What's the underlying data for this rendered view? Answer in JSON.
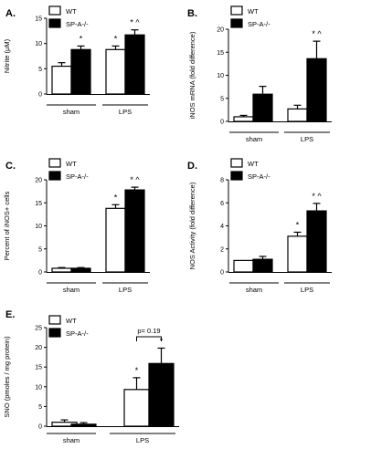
{
  "chart_data": [
    {
      "panel": "A.",
      "type": "bar",
      "ylabel": "Nitrite (µM)",
      "ylim": [
        0,
        15
      ],
      "yticks": [
        0,
        5,
        10,
        15
      ],
      "groups": [
        "sham",
        "LPS"
      ],
      "series": [
        {
          "name": "WT",
          "color": "#ffffff",
          "values": [
            5.5,
            8.8
          ],
          "errors": [
            0.7,
            0.7
          ]
        },
        {
          "name": "SP-A-/-",
          "color": "#000000",
          "values": [
            8.8,
            11.7
          ],
          "errors": [
            0.7,
            1.0
          ]
        }
      ],
      "annotations": [
        {
          "group": 0,
          "series": 1,
          "text": "*"
        },
        {
          "group": 1,
          "series": 0,
          "text": "*"
        },
        {
          "group": 1,
          "series": 1,
          "text": "* ^"
        }
      ]
    },
    {
      "panel": "B.",
      "type": "bar",
      "ylabel": "iNOS mRNA (fold difference)",
      "ylim": [
        0,
        20
      ],
      "yticks": [
        0,
        5,
        10,
        15,
        20
      ],
      "groups": [
        "sham",
        "LPS"
      ],
      "series": [
        {
          "name": "WT",
          "color": "#ffffff",
          "values": [
            1.0,
            2.7
          ],
          "errors": [
            0.3,
            0.8
          ]
        },
        {
          "name": "SP-A-/-",
          "color": "#000000",
          "values": [
            5.9,
            13.6
          ],
          "errors": [
            1.7,
            3.8
          ]
        }
      ],
      "annotations": [
        {
          "group": 1,
          "series": 1,
          "text": "* ^"
        }
      ]
    },
    {
      "panel": "C.",
      "type": "bar",
      "ylabel": "Percent of iNOS+ cells",
      "ylim": [
        0,
        20
      ],
      "yticks": [
        0,
        5,
        10,
        15,
        20
      ],
      "groups": [
        "sham",
        "LPS"
      ],
      "series": [
        {
          "name": "WT",
          "color": "#ffffff",
          "values": [
            0.8,
            13.8
          ],
          "errors": [
            0.15,
            0.8
          ]
        },
        {
          "name": "SP-A-/-",
          "color": "#000000",
          "values": [
            0.8,
            17.8
          ],
          "errors": [
            0.15,
            0.6
          ]
        }
      ],
      "annotations": [
        {
          "group": 1,
          "series": 0,
          "text": "*"
        },
        {
          "group": 1,
          "series": 1,
          "text": "* ^"
        }
      ]
    },
    {
      "panel": "D.",
      "type": "bar",
      "ylabel": "NOS Activity (fold difference)",
      "ylim": [
        0,
        8
      ],
      "yticks": [
        0,
        2,
        4,
        6,
        8
      ],
      "groups": [
        "sham",
        "LPS"
      ],
      "series": [
        {
          "name": "WT",
          "color": "#ffffff",
          "values": [
            1.0,
            3.1
          ],
          "errors": [
            0.0,
            0.35
          ]
        },
        {
          "name": "SP-A-/-",
          "color": "#000000",
          "values": [
            1.1,
            5.3
          ],
          "errors": [
            0.25,
            0.65
          ]
        }
      ],
      "annotations": [
        {
          "group": 1,
          "series": 0,
          "text": "*"
        },
        {
          "group": 1,
          "series": 1,
          "text": "* ^"
        }
      ]
    },
    {
      "panel": "E.",
      "type": "bar",
      "ylabel": "SNO (pmoles / mg protein)",
      "ylim": [
        0,
        25
      ],
      "yticks": [
        0,
        5,
        10,
        15,
        20,
        25
      ],
      "groups": [
        "sham",
        "LPS"
      ],
      "series": [
        {
          "name": "WT",
          "color": "#ffffff",
          "values": [
            1.0,
            9.3
          ],
          "errors": [
            0.6,
            3.0
          ]
        },
        {
          "name": "SP-A-/-",
          "color": "#000000",
          "values": [
            0.5,
            15.9
          ],
          "errors": [
            0.4,
            3.9
          ]
        }
      ],
      "annotations": [
        {
          "group": 1,
          "series": 0,
          "text": "*"
        },
        {
          "group": 1,
          "series": 1,
          "text": "*"
        }
      ],
      "bracket": {
        "group": 1,
        "text": "p= 0.19"
      }
    }
  ]
}
